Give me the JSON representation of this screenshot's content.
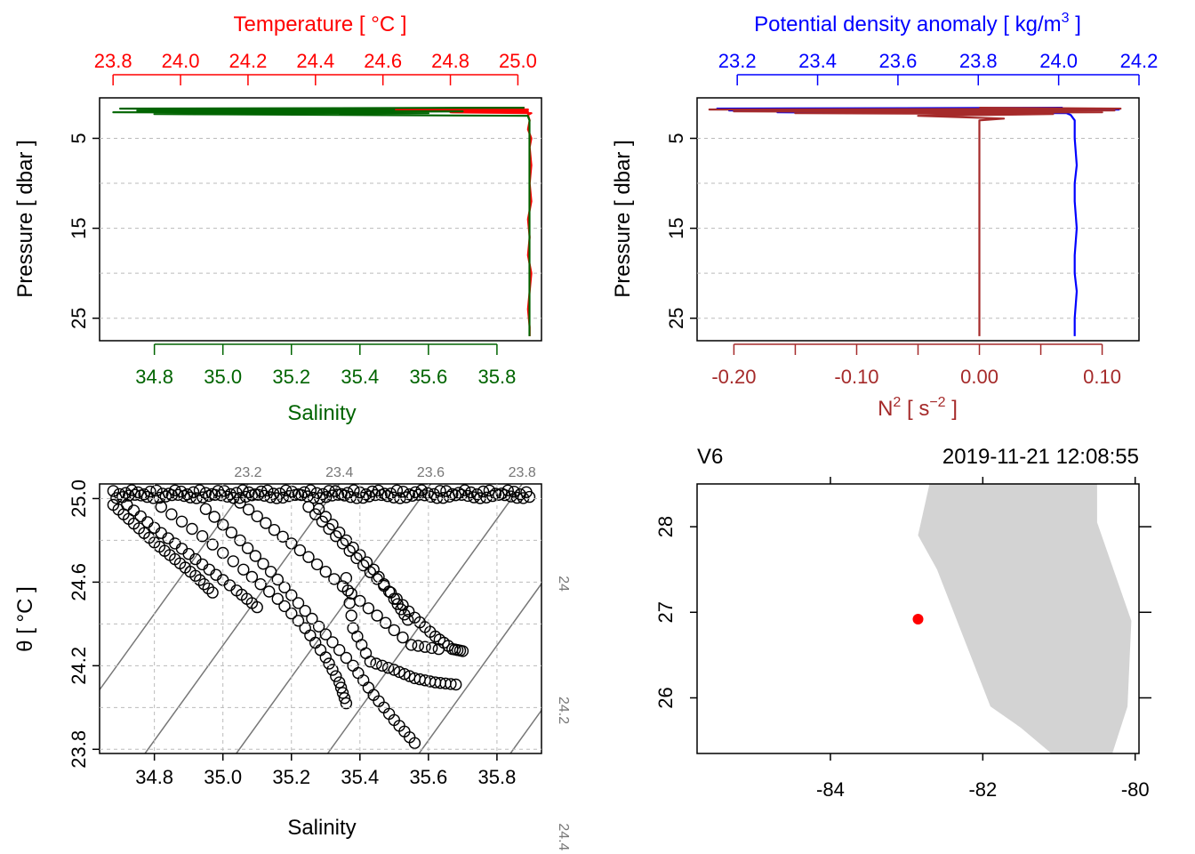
{
  "colors": {
    "temperature": "#ff0000",
    "salinity": "#006400",
    "density": "#0000ff",
    "n2": "#a52a2a",
    "axis": "#000000",
    "grid": "#bbbbbb",
    "isopycnal": "#777777",
    "land": "#d3d3d3",
    "station": "#ff0000"
  },
  "chart_data": [
    {
      "id": "ts-profile",
      "type": "line",
      "title": "Temperature [ °C ]",
      "top_axis": {
        "label": "Temperature [ °C ]",
        "range": [
          23.76,
          25.07
        ],
        "ticks": [
          23.8,
          24.0,
          24.2,
          24.4,
          24.6,
          24.8,
          25.0
        ],
        "tick_labels": [
          "23.8",
          "24.0",
          "24.2",
          "24.4",
          "24.6",
          "24.8",
          "25.0"
        ]
      },
      "bottom_axis": {
        "label": "Salinity",
        "range": [
          34.64,
          35.93
        ],
        "ticks": [
          34.8,
          35.0,
          35.2,
          35.4,
          35.6,
          35.8
        ],
        "tick_labels": [
          "34.8",
          "35.0",
          "35.2",
          "35.4",
          "35.6",
          "35.8"
        ]
      },
      "ylabel": "Pressure [ dbar ]",
      "ylim": [
        27.5,
        0.5
      ],
      "yticks": [
        5,
        15,
        25
      ],
      "ytick_labels": [
        "5",
        "15",
        "25"
      ],
      "ygrid": [
        5,
        10,
        15,
        20,
        25
      ],
      "series": [
        {
          "name": "Temperature",
          "axis": "top",
          "pressure": [
            1.6,
            1.7,
            1.8,
            1.9,
            2.0,
            2.1,
            2.2,
            2.4,
            3,
            4,
            5,
            6,
            8,
            10,
            12,
            14,
            16,
            18,
            20,
            22,
            24,
            26,
            27
          ],
          "values": [
            25.02,
            24.45,
            25.03,
            24.2,
            25.03,
            24.8,
            25.04,
            25.03,
            25.035,
            25.03,
            25.04,
            25.035,
            25.04,
            25.035,
            25.04,
            25.03,
            25.035,
            25.03,
            25.04,
            25.035,
            25.03,
            25.035,
            25.035
          ]
        },
        {
          "name": "Salinity",
          "axis": "bottom",
          "pressure": [
            1.6,
            1.7,
            1.8,
            1.9,
            2.0,
            2.1,
            2.2,
            2.3,
            2.5,
            3,
            5,
            8,
            10,
            15,
            20,
            25,
            27
          ],
          "values": [
            35.88,
            34.7,
            35.5,
            34.75,
            35.7,
            34.68,
            35.6,
            34.8,
            35.89,
            35.895,
            35.895,
            35.895,
            35.895,
            35.895,
            35.895,
            35.895,
            35.895
          ]
        }
      ]
    },
    {
      "id": "density-n2-profile",
      "type": "line",
      "title": "Potential density anomaly [ kg/m3 ]",
      "top_axis": {
        "label": "Potential density anomaly [ kg/m",
        "label_sup": "3",
        "label_end": " ]",
        "range": [
          23.1,
          24.2
        ],
        "ticks": [
          23.2,
          23.4,
          23.6,
          23.8,
          24.0,
          24.2
        ],
        "tick_labels": [
          "23.2",
          "23.4",
          "23.6",
          "23.8",
          "24.0",
          "24.2"
        ]
      },
      "bottom_axis": {
        "label": "N",
        "label_sup": "2",
        "label_mid": " [ s",
        "label_sup2": "−2",
        "label_end": " ]",
        "range": [
          -0.23,
          0.13
        ],
        "ticks": [
          -0.2,
          -0.15,
          -0.1,
          -0.05,
          0.0,
          0.05,
          0.1
        ],
        "labeled_ticks": [
          -0.2,
          -0.1,
          0.0,
          0.1
        ],
        "tick_labels": [
          "-0.20",
          "-0.10",
          "0.00",
          "0.10"
        ]
      },
      "ylabel": "Pressure [ dbar ]",
      "ylim": [
        27.5,
        0.5
      ],
      "yticks": [
        5,
        15,
        25
      ],
      "ytick_labels": [
        "5",
        "15",
        "25"
      ],
      "ygrid": [
        5,
        10,
        15,
        20,
        25
      ],
      "series": [
        {
          "name": "Potential density anomaly",
          "axis": "top",
          "pressure": [
            1.6,
            1.7,
            1.8,
            1.9,
            2.0,
            2.1,
            2.2,
            2.4,
            3,
            5,
            8,
            10,
            12,
            15,
            18,
            20,
            22,
            25,
            27
          ],
          "values": [
            24.01,
            23.15,
            24.15,
            23.18,
            23.9,
            23.3,
            24.02,
            24.03,
            24.04,
            24.04,
            24.045,
            24.04,
            24.04,
            24.045,
            24.04,
            24.04,
            24.045,
            24.04,
            24.04
          ]
        },
        {
          "name": "N2",
          "axis": "bottom",
          "pressure": [
            1.6,
            1.7,
            1.8,
            1.9,
            2.0,
            2.1,
            2.2,
            2.3,
            2.5,
            2.8,
            3.0,
            5,
            10,
            15,
            20,
            25,
            27
          ],
          "values": [
            0.0,
            0.115,
            -0.22,
            0.11,
            -0.2,
            0.1,
            -0.15,
            0.06,
            -0.05,
            0.02,
            0.0,
            0.0,
            0.0,
            0.0,
            0.0,
            0.0,
            0.0
          ]
        }
      ]
    },
    {
      "id": "ts-diagram",
      "type": "scatter",
      "xlabel": "Salinity",
      "ylabel": "θ [ °C ]",
      "xlim": [
        34.64,
        35.93
      ],
      "ylim": [
        23.78,
        25.07
      ],
      "xticks": [
        34.8,
        35.0,
        35.2,
        35.4,
        35.6,
        35.8
      ],
      "xtick_labels": [
        "34.8",
        "35.0",
        "35.2",
        "35.4",
        "35.6",
        "35.8"
      ],
      "yticks": [
        23.8,
        24.2,
        24.6,
        25.0
      ],
      "ytick_labels": [
        "23.8",
        "24.2",
        "24.6",
        "25.0"
      ],
      "ygrid": [
        23.8,
        24.0,
        24.2,
        24.4,
        24.6,
        24.8,
        25.0
      ],
      "isopycnals": [
        23.2,
        23.4,
        23.6,
        23.8,
        24.0,
        24.2,
        24.4
      ],
      "isopycnal_labels": [
        "23.2",
        "23.4",
        "23.6",
        "23.8",
        "24",
        "24.2",
        "24.4"
      ],
      "branches": [
        {
          "s": [
            34.68,
            34.74,
            34.8,
            34.86,
            34.92,
            34.97
          ],
          "t": [
            24.97,
            24.88,
            24.79,
            24.71,
            24.63,
            24.55
          ]
        },
        {
          "s": [
            34.72,
            34.8,
            34.88,
            34.96,
            35.04,
            35.1
          ],
          "t": [
            24.97,
            24.86,
            24.76,
            24.66,
            24.56,
            24.48
          ]
        },
        {
          "s": [
            34.82,
            34.94,
            35.06,
            35.16,
            35.24,
            35.3,
            35.34,
            35.36
          ],
          "t": [
            24.96,
            24.82,
            24.66,
            24.52,
            24.38,
            24.24,
            24.12,
            24.02
          ]
        },
        {
          "s": [
            34.95,
            35.05,
            35.14,
            35.22,
            35.3,
            35.38,
            35.44,
            35.5,
            35.56
          ],
          "t": [
            24.95,
            24.8,
            24.65,
            24.5,
            24.35,
            24.2,
            24.06,
            23.94,
            23.83
          ]
        },
        {
          "s": [
            35.05,
            35.15,
            35.25,
            35.35,
            35.45,
            35.55,
            35.63
          ],
          "t": [
            24.98,
            24.85,
            24.72,
            24.58,
            24.44,
            24.3,
            24.28
          ]
        },
        {
          "s": [
            35.25,
            35.33,
            35.41,
            35.49,
            35.56,
            35.62,
            35.67,
            35.7
          ],
          "t": [
            24.96,
            24.82,
            24.68,
            24.55,
            24.43,
            24.34,
            24.28,
            24.27
          ]
        },
        {
          "s": [
            35.28,
            35.36,
            35.44,
            35.5,
            35.54
          ],
          "t": [
            24.95,
            24.8,
            24.66,
            24.52,
            24.42
          ]
        },
        {
          "s": [
            35.36,
            35.38,
            35.43,
            35.5,
            35.56,
            35.62,
            35.68
          ],
          "t": [
            24.62,
            24.38,
            24.22,
            24.18,
            24.14,
            24.12,
            24.11
          ]
        }
      ],
      "surface_band": {
        "s_range": [
          34.68,
          35.9
        ],
        "t": 25.03
      }
    },
    {
      "id": "station-map",
      "type": "map",
      "station": "V6",
      "datetime": "2019-11-21 12:08:55",
      "xlim": [
        -85.75,
        -79.95
      ],
      "ylim": [
        25.35,
        28.5
      ],
      "xticks": [
        -84,
        -82,
        -80
      ],
      "xtick_labels": [
        "-84",
        "-82",
        "-80"
      ],
      "yticks": [
        26,
        27,
        28
      ],
      "ytick_labels": [
        "26",
        "27",
        "28"
      ],
      "station_position": {
        "lon": -82.85,
        "lat": 26.92
      },
      "land_outline": [
        [
          -82.7,
          28.5
        ],
        [
          -80.5,
          28.5
        ],
        [
          -80.5,
          28.05
        ],
        [
          -80.05,
          26.9
        ],
        [
          -80.1,
          25.9
        ],
        [
          -80.3,
          25.35
        ],
        [
          -81.1,
          25.35
        ],
        [
          -81.5,
          25.65
        ],
        [
          -81.9,
          25.9
        ],
        [
          -82.6,
          27.5
        ],
        [
          -82.85,
          27.9
        ]
      ]
    }
  ]
}
